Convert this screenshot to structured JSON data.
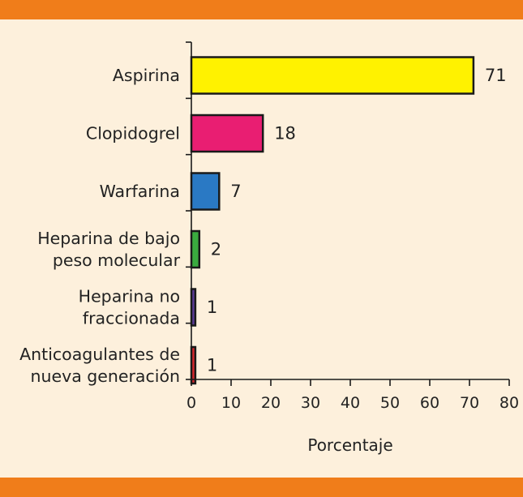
{
  "chart_data": {
    "type": "bar",
    "orientation": "horizontal",
    "categories": [
      [
        "Aspirina"
      ],
      [
        "Clopidogrel"
      ],
      [
        "Warfarina"
      ],
      [
        "Heparina de bajo",
        "peso molecular"
      ],
      [
        "Heparina no",
        "fraccionada"
      ],
      [
        "Anticoagulantes de",
        "nueva generación"
      ]
    ],
    "values": [
      71,
      18,
      7,
      2,
      1,
      1
    ],
    "value_labels": [
      "71",
      "18",
      "7",
      "2",
      "1",
      "1"
    ],
    "colors": [
      "#fff200",
      "#e91e72",
      "#2a79c4",
      "#3aab3f",
      "#5a3b96",
      "#d7262c"
    ],
    "xlabel": "Porcentaje",
    "xlim": [
      0,
      80
    ],
    "xticks": [
      "0",
      "10",
      "20",
      "30",
      "40",
      "50",
      "60",
      "70",
      "80"
    ],
    "title": "",
    "grid": false
  },
  "colors": {
    "background": "#fdf0dc",
    "band": "#f07d1a"
  }
}
